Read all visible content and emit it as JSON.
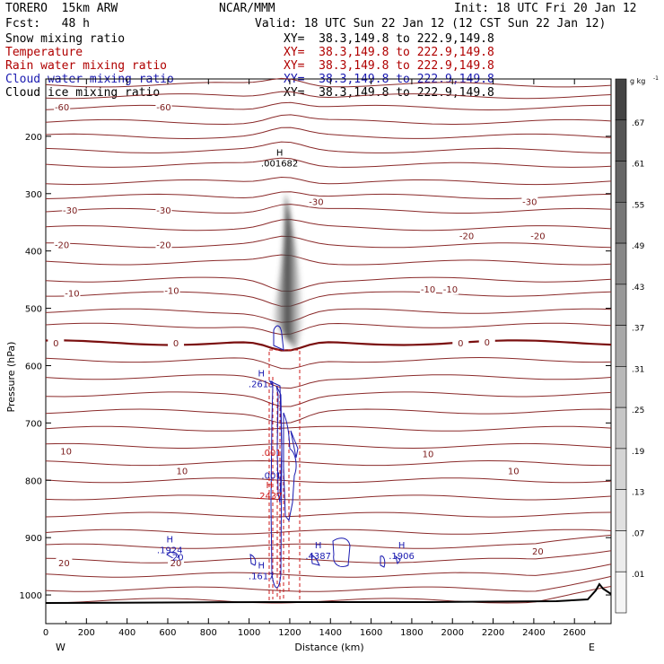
{
  "header": {
    "model": "TORERO  15km ARW",
    "org": "NCAR/MMM",
    "init": "Init: 18 UTC Fri 20 Jan 12",
    "fcst": "Fcst:   48 h",
    "valid": "Valid: 18 UTC Sun 22 Jan 12 (12 CST Sun 22 Jan 12)"
  },
  "fields": [
    {
      "name": "Snow mixing ratio",
      "xy": "XY=  38.3,149.8 to 222.9,149.8",
      "color": "#000000"
    },
    {
      "name": "Temperature",
      "xy": "XY=  38.3,149.8 to 222.9,149.8",
      "color": "#b00000"
    },
    {
      "name": "Rain water mixing ratio",
      "xy": "XY=  38.3,149.8 to 222.9,149.8",
      "color": "#b00000"
    },
    {
      "name": "Cloud water mixing ratio",
      "xy": "XY=  38.3,149.8 to 222.9,149.8",
      "color": "#1a1ab0"
    },
    {
      "name": "Cloud ice mixing ratio",
      "xy": "XY=  38.3,149.8 to 222.9,149.8",
      "color": "#000000"
    }
  ],
  "chart_data": {
    "type": "cross-section",
    "xlabel": "Distance (km)",
    "ylabel": "Pressure (hPa)",
    "xlim": [
      0,
      2780
    ],
    "ylim": [
      1050,
      100
    ],
    "x_ticks": [
      0,
      200,
      400,
      600,
      800,
      1000,
      1200,
      1400,
      1600,
      1800,
      2000,
      2200,
      2400,
      2600
    ],
    "y_ticks": [
      200,
      300,
      400,
      500,
      600,
      700,
      800,
      900,
      1000
    ],
    "x_end_labels": {
      "left": "W",
      "right": "E"
    },
    "colorbar": {
      "unit": "g kg",
      "unit_exp": "-1",
      "labels": [
        ".01",
        ".07",
        ".13",
        ".19",
        ".25",
        ".31",
        ".37",
        ".43",
        ".49",
        ".55",
        ".61",
        ".67"
      ],
      "colors": [
        "#f5f5f5",
        "#ececec",
        "#e0e0e0",
        "#d4d4d4",
        "#c6c6c6",
        "#b8b8b8",
        "#a8a8a8",
        "#989898",
        "#878787",
        "#777777",
        "#666666",
        "#555555",
        "#444444"
      ]
    },
    "temperature_isotherms_C": [
      {
        "level": -60,
        "p": 150,
        "labels": [
          {
            "x": 80,
            "p": 150
          },
          {
            "x": 580,
            "p": 150
          }
        ]
      },
      {
        "level": -30,
        "p": 330,
        "labels": [
          {
            "x": 120,
            "p": 330
          },
          {
            "x": 580,
            "p": 330
          },
          {
            "x": 1330,
            "p": 315
          },
          {
            "x": 2380,
            "p": 315
          }
        ]
      },
      {
        "level": -20,
        "p": 390,
        "labels": [
          {
            "x": 80,
            "p": 390
          },
          {
            "x": 580,
            "p": 390
          },
          {
            "x": 2070,
            "p": 375
          },
          {
            "x": 2420,
            "p": 375
          }
        ]
      },
      {
        "level": -10,
        "p": 475,
        "labels": [
          {
            "x": 130,
            "p": 475
          },
          {
            "x": 620,
            "p": 470
          },
          {
            "x": 1880,
            "p": 468
          },
          {
            "x": 1990,
            "p": 468
          }
        ]
      },
      {
        "level": 0,
        "p": 560,
        "labels": [
          {
            "x": 50,
            "p": 562
          },
          {
            "x": 640,
            "p": 562
          },
          {
            "x": 2040,
            "p": 562
          },
          {
            "x": 2170,
            "p": 560
          }
        ]
      },
      {
        "level": 10,
        "p": 770,
        "labels": [
          {
            "x": 100,
            "p": 750
          },
          {
            "x": 670,
            "p": 785
          },
          {
            "x": 1880,
            "p": 755
          },
          {
            "x": 2300,
            "p": 785
          }
        ]
      },
      {
        "level": 20,
        "p": 940,
        "labels": [
          {
            "x": 90,
            "p": 945
          },
          {
            "x": 640,
            "p": 945
          },
          {
            "x": 2420,
            "p": 925
          }
        ]
      }
    ],
    "maxima": [
      {
        "label": "H",
        "value": ".001682",
        "x": 1150,
        "p": 240,
        "field": "Snow mixing ratio"
      },
      {
        "label": "H",
        "value": ".2613",
        "x": 1060,
        "p": 625,
        "field": "Cloud water mixing ratio"
      },
      {
        "label": "",
        "value": ".001",
        "x": 1110,
        "p": 745,
        "field": "Rain water mixing ratio"
      },
      {
        "label": "",
        "value": ".001",
        "x": 1110,
        "p": 785,
        "field": "Cloud water mixing ratio"
      },
      {
        "label": "H",
        "value": ".2437",
        "x": 1100,
        "p": 820,
        "field": "Rain water mixing ratio"
      },
      {
        "label": "H",
        "value": ".1924",
        "x": 610,
        "p": 915,
        "field": "Cloud water mixing ratio"
      },
      {
        "label": "H",
        "value": ".1617",
        "x": 1060,
        "p": 960,
        "field": "Cloud water mixing ratio"
      },
      {
        "label": "H",
        "value": ".4387",
        "x": 1340,
        "p": 925,
        "field": "Cloud water mixing ratio"
      },
      {
        "label": "H",
        "value": ".1906",
        "x": 1750,
        "p": 925,
        "field": "Cloud water mixing ratio"
      }
    ],
    "small_contour_labels": [
      {
        "text": "20",
        "x": 650,
        "p": 935,
        "field": "Cloud water mixing ratio"
      },
      {
        "text": "-60",
        "x": 80,
        "p": 150,
        "field": "Temperature"
      }
    ]
  }
}
